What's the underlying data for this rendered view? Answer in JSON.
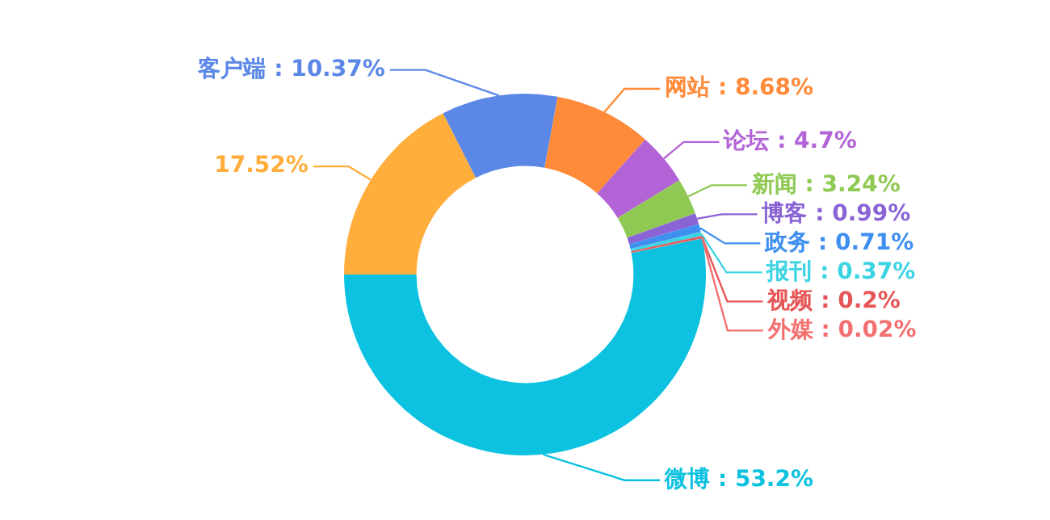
{
  "chart_data": {
    "type": "donut",
    "categories": [
      "微博",
      null,
      "客户端",
      "网站",
      "论坛",
      "新闻",
      "博客",
      "政务",
      "报刊",
      "视频",
      "外媒"
    ],
    "values": [
      53.2,
      17.52,
      10.37,
      8.68,
      4.7,
      3.24,
      0.99,
      0.71,
      0.37,
      0.2,
      0.02
    ],
    "value_labels": [
      "53.2%",
      "17.52%",
      "10.37%",
      "8.68%",
      "4.7%",
      "3.24%",
      "0.99%",
      "0.71%",
      "0.37%",
      "0.2%",
      "0.02%"
    ],
    "colors": [
      "#0cc2e0",
      "#ffad3b",
      "#5b87e6",
      "#ff8a3a",
      "#b263d6",
      "#8fc954",
      "#8a63d4",
      "#3f8ff0",
      "#3cd3e3",
      "#e65555",
      "#f47070"
    ],
    "legend": false
  }
}
